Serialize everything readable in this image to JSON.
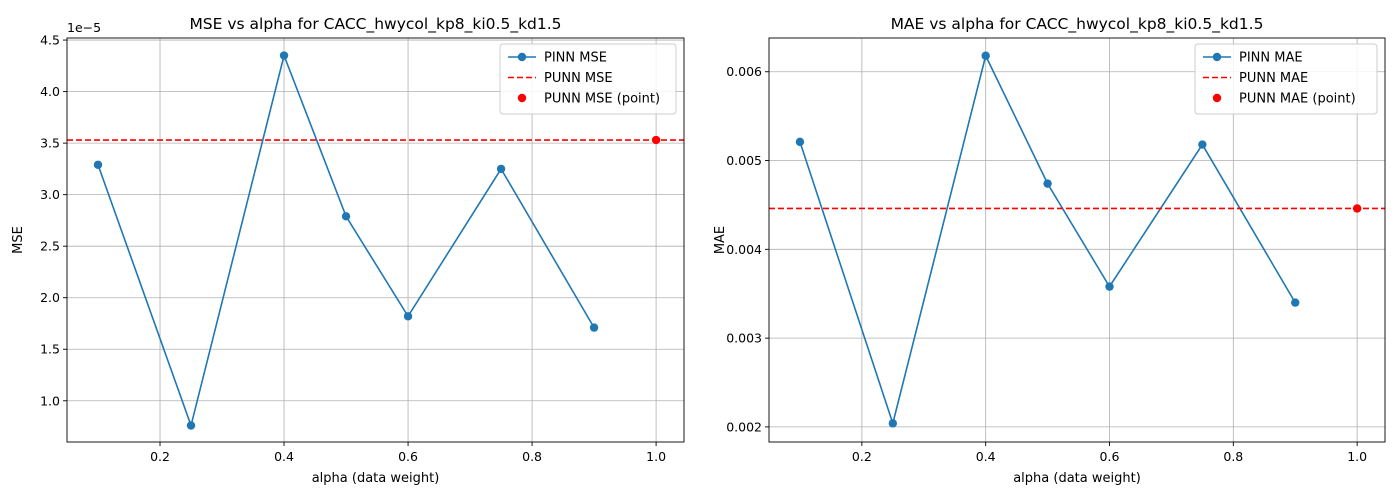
{
  "chart_data": [
    {
      "type": "line",
      "title": "MSE vs alpha for CACC_hwycol_kp8_ki0.5_kd1.5",
      "xlabel": "alpha (data weight)",
      "ylabel": "MSE",
      "offset_text": "1e−5",
      "xlim": [
        0.05,
        1.045
      ],
      "ylim": [
        0.6,
        4.52
      ],
      "xticks": [
        0.2,
        0.4,
        0.6,
        0.8,
        1.0
      ],
      "xtick_labels": [
        "0.2",
        "0.4",
        "0.6",
        "0.8",
        "1.0"
      ],
      "yticks": [
        1.0,
        1.5,
        2.0,
        2.5,
        3.0,
        3.5,
        4.0,
        4.5
      ],
      "ytick_labels": [
        "1.0",
        "1.5",
        "2.0",
        "2.5",
        "3.0",
        "3.5",
        "4.0",
        "4.5"
      ],
      "grid": true,
      "legend_position": "top-right",
      "series": [
        {
          "name": "PINN MSE",
          "kind": "line-marker",
          "color": "#1f77b4",
          "x": [
            0.1,
            0.25,
            0.4,
            0.5,
            0.6,
            0.75,
            0.9
          ],
          "values": [
            3.29,
            0.76,
            4.35,
            2.79,
            1.82,
            3.25,
            1.71
          ]
        },
        {
          "name": "PUNN MSE",
          "kind": "hline",
          "color": "#ff0000",
          "value": 3.53
        },
        {
          "name": "PUNN MSE (point)",
          "kind": "point",
          "color": "#ff0000",
          "x": [
            1.0
          ],
          "values": [
            3.53
          ]
        }
      ]
    },
    {
      "type": "line",
      "title": "MAE vs alpha for CACC_hwycol_kp8_ki0.5_kd1.5",
      "xlabel": "alpha (data weight)",
      "ylabel": "MAE",
      "offset_text": "",
      "xlim": [
        0.05,
        1.045
      ],
      "ylim": [
        0.00183,
        0.00638
      ],
      "xticks": [
        0.2,
        0.4,
        0.6,
        0.8,
        1.0
      ],
      "xtick_labels": [
        "0.2",
        "0.4",
        "0.6",
        "0.8",
        "1.0"
      ],
      "yticks": [
        0.002,
        0.003,
        0.004,
        0.005,
        0.006
      ],
      "ytick_labels": [
        "0.002",
        "0.003",
        "0.004",
        "0.005",
        "0.006"
      ],
      "grid": true,
      "legend_position": "top-right",
      "series": [
        {
          "name": "PINN MAE",
          "kind": "line-marker",
          "color": "#1f77b4",
          "x": [
            0.1,
            0.25,
            0.4,
            0.5,
            0.6,
            0.75,
            0.9
          ],
          "values": [
            0.00521,
            0.00204,
            0.00618,
            0.00474,
            0.00358,
            0.00518,
            0.0034
          ]
        },
        {
          "name": "PUNN MAE",
          "kind": "hline",
          "color": "#ff0000",
          "value": 0.00446
        },
        {
          "name": "PUNN MAE (point)",
          "kind": "point",
          "color": "#ff0000",
          "x": [
            1.0
          ],
          "values": [
            0.00446
          ]
        }
      ]
    }
  ]
}
